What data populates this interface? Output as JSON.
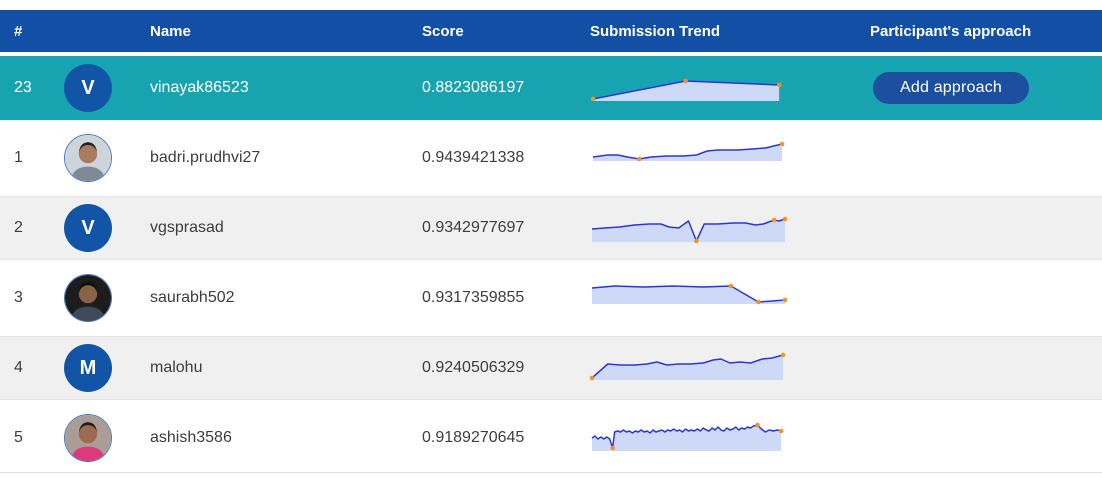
{
  "table": {
    "header": {
      "rank": "#",
      "name": "Name",
      "score": "Score",
      "trend": "Submission Trend",
      "approach": "Participant's approach"
    },
    "rows": [
      {
        "rank": "23",
        "name": "vinayak86523",
        "score": "0.8823086197",
        "style": "highlight",
        "avatar": {
          "type": "letter",
          "letter": "V"
        },
        "action_label": "Add approach",
        "trend_index": 0
      },
      {
        "rank": "1",
        "name": "badri.prudhvi27",
        "score": "0.9439421338",
        "style": "white",
        "avatar": {
          "type": "photo",
          "bg": "#cdd5da",
          "skin": "#a97c5f",
          "hair": "#26201c",
          "shirt": "#7e8a96"
        },
        "trend_index": 1
      },
      {
        "rank": "2",
        "name": "vgsprasad",
        "score": "0.9342977697",
        "style": "tinted",
        "avatar": {
          "type": "letter",
          "letter": "V"
        },
        "trend_index": 2
      },
      {
        "rank": "3",
        "name": "saurabh502",
        "score": "0.9317359855",
        "style": "white",
        "avatar": {
          "type": "photo",
          "bg": "#1c1c1c",
          "skin": "#8a6248",
          "hair": "#0e0a08",
          "shirt": "#3d4a58"
        },
        "trend_index": 3
      },
      {
        "rank": "4",
        "name": "malohu",
        "score": "0.9240506329",
        "style": "tinted",
        "avatar": {
          "type": "letter",
          "letter": "M"
        },
        "trend_index": 4
      },
      {
        "rank": "5",
        "name": "ashish3586",
        "score": "0.9189270645",
        "style": "white",
        "avatar": {
          "type": "photo",
          "bg": "#aa9d96",
          "skin": "#9c6b4f",
          "hair": "#221a16",
          "shirt": "#e0397a"
        },
        "trend_index": 5
      }
    ]
  },
  "colors": {
    "header_bg": "#134fa4",
    "highlight_row_bg": "#18a3b1",
    "tinted_row_bg": "#f0f0f0",
    "letter_avatar_bg": "#1254a6",
    "button_bg": "#1d4f9f",
    "spark_line": "#2c35d6",
    "spark_fill": "#cdd9f6",
    "spark_marker": "#f6921e",
    "separator": "#e0e0e0",
    "text": "#3d3d3d"
  },
  "chart_data": [
    {
      "type": "line",
      "name": "vinayak86523 submission trend",
      "x_range": [
        0,
        200
      ],
      "y_range": [
        0,
        32
      ],
      "baseline": 29,
      "points": [
        [
          3,
          27
        ],
        [
          97,
          9
        ],
        [
          192,
          13
        ]
      ],
      "markers": [
        [
          3,
          27
        ],
        [
          97,
          9
        ],
        [
          192,
          13
        ]
      ]
    },
    {
      "type": "line",
      "name": "badri.prudhvi27 submission trend",
      "x_range": [
        0,
        200
      ],
      "y_range": [
        0,
        32
      ],
      "baseline": 19,
      "points": [
        [
          3,
          15
        ],
        [
          18,
          13
        ],
        [
          28,
          13
        ],
        [
          38,
          15
        ],
        [
          50,
          17
        ],
        [
          62,
          15
        ],
        [
          78,
          14
        ],
        [
          95,
          14
        ],
        [
          108,
          13
        ],
        [
          119,
          9
        ],
        [
          130,
          8
        ],
        [
          150,
          8
        ],
        [
          165,
          7
        ],
        [
          178,
          6
        ],
        [
          195,
          2
        ]
      ],
      "markers": [
        [
          50,
          17
        ],
        [
          195,
          2
        ]
      ]
    },
    {
      "type": "line",
      "name": "vgsprasad submission trend",
      "x_range": [
        0,
        200
      ],
      "y_range": [
        0,
        32
      ],
      "baseline": 30,
      "points": [
        [
          2,
          17
        ],
        [
          15,
          16
        ],
        [
          30,
          15
        ],
        [
          45,
          13
        ],
        [
          60,
          12
        ],
        [
          72,
          12
        ],
        [
          80,
          15
        ],
        [
          90,
          16
        ],
        [
          100,
          9
        ],
        [
          108,
          29
        ],
        [
          116,
          12
        ],
        [
          130,
          12
        ],
        [
          145,
          11
        ],
        [
          158,
          11
        ],
        [
          168,
          13
        ],
        [
          176,
          12
        ],
        [
          187,
          8
        ],
        [
          192,
          9
        ],
        [
          198,
          7
        ]
      ],
      "markers": [
        [
          108,
          29
        ],
        [
          187,
          8
        ],
        [
          198,
          7
        ]
      ]
    },
    {
      "type": "line",
      "name": "saurabh502 submission trend",
      "x_range": [
        0,
        200
      ],
      "y_range": [
        0,
        32
      ],
      "baseline": 22,
      "points": [
        [
          2,
          6
        ],
        [
          25,
          4
        ],
        [
          55,
          5
        ],
        [
          85,
          4
        ],
        [
          115,
          5
        ],
        [
          143,
          4
        ],
        [
          171,
          20
        ],
        [
          198,
          18
        ]
      ],
      "markers": [
        [
          143,
          4
        ],
        [
          171,
          20
        ],
        [
          198,
          18
        ]
      ]
    },
    {
      "type": "line",
      "name": "malohu submission trend",
      "x_range": [
        0,
        200
      ],
      "y_range": [
        0,
        32
      ],
      "baseline": 28,
      "points": [
        [
          2,
          26
        ],
        [
          18,
          12
        ],
        [
          30,
          13
        ],
        [
          45,
          13
        ],
        [
          58,
          12
        ],
        [
          68,
          10
        ],
        [
          78,
          13
        ],
        [
          90,
          12
        ],
        [
          102,
          12
        ],
        [
          115,
          11
        ],
        [
          125,
          8
        ],
        [
          133,
          7
        ],
        [
          142,
          11
        ],
        [
          152,
          10
        ],
        [
          163,
          11
        ],
        [
          175,
          7
        ],
        [
          185,
          6
        ],
        [
          196,
          3
        ]
      ],
      "markers": [
        [
          2,
          26
        ],
        [
          196,
          3
        ]
      ]
    },
    {
      "type": "line",
      "name": "ashish3586 submission trend",
      "x_range": [
        0,
        200
      ],
      "y_range": [
        0,
        32
      ],
      "baseline": 29,
      "points": [
        [
          2,
          16
        ],
        [
          5,
          14
        ],
        [
          8,
          17
        ],
        [
          11,
          15
        ],
        [
          14,
          17
        ],
        [
          17,
          15
        ],
        [
          20,
          17
        ],
        [
          23,
          26
        ],
        [
          25,
          10
        ],
        [
          28,
          9
        ],
        [
          31,
          10
        ],
        [
          34,
          8
        ],
        [
          37,
          10
        ],
        [
          40,
          9
        ],
        [
          43,
          11
        ],
        [
          46,
          9
        ],
        [
          49,
          10
        ],
        [
          52,
          8
        ],
        [
          55,
          10
        ],
        [
          58,
          9
        ],
        [
          61,
          11
        ],
        [
          64,
          8
        ],
        [
          67,
          10
        ],
        [
          70,
          9
        ],
        [
          73,
          8
        ],
        [
          76,
          10
        ],
        [
          79,
          8
        ],
        [
          82,
          9
        ],
        [
          85,
          7
        ],
        [
          88,
          9
        ],
        [
          91,
          8
        ],
        [
          94,
          10
        ],
        [
          97,
          7
        ],
        [
          100,
          9
        ],
        [
          103,
          8
        ],
        [
          106,
          9
        ],
        [
          109,
          7
        ],
        [
          112,
          9
        ],
        [
          115,
          6
        ],
        [
          118,
          8
        ],
        [
          121,
          9
        ],
        [
          124,
          6
        ],
        [
          127,
          8
        ],
        [
          130,
          5
        ],
        [
          133,
          8
        ],
        [
          136,
          9
        ],
        [
          139,
          6
        ],
        [
          142,
          8
        ],
        [
          145,
          7
        ],
        [
          148,
          5
        ],
        [
          151,
          8
        ],
        [
          154,
          6
        ],
        [
          157,
          7
        ],
        [
          160,
          5
        ],
        [
          163,
          6
        ],
        [
          166,
          4
        ],
        [
          170,
          3
        ],
        [
          174,
          7
        ],
        [
          178,
          10
        ],
        [
          182,
          8
        ],
        [
          186,
          9
        ],
        [
          190,
          8
        ],
        [
          194,
          9
        ]
      ],
      "markers": [
        [
          23,
          26
        ],
        [
          170,
          3
        ],
        [
          194,
          9
        ]
      ]
    }
  ]
}
